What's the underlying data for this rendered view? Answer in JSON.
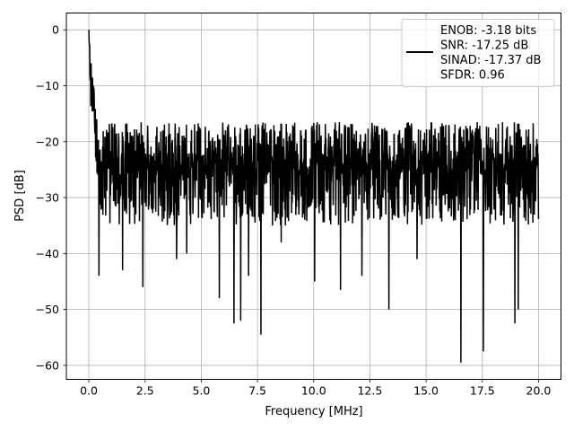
{
  "chart_data": {
    "type": "line",
    "xlabel": "Frequency [MHz]",
    "ylabel": "PSD [dB]",
    "xlim": [
      -1,
      21
    ],
    "ylim": [
      -62.5,
      3
    ],
    "x_ticks": [
      0,
      2.5,
      5,
      7.5,
      10,
      12.5,
      15,
      17.5,
      20
    ],
    "x_tick_labels": [
      "0.0",
      "2.5",
      "5.0",
      "7.5",
      "10.0",
      "12.5",
      "15.0",
      "17.5",
      "20.0"
    ],
    "y_ticks": [
      0,
      -10,
      -20,
      -30,
      -40,
      -50,
      -60
    ],
    "y_tick_labels": [
      "0",
      "−10",
      "−20",
      "−30",
      "−40",
      "−50",
      "−60"
    ],
    "grid": true,
    "legend_position": "top-right",
    "legend_entries": [
      "ENOB: -3.18 bits",
      "SNR: -17.25 dB",
      "SINAD: -17.37 dB",
      "SFDR: 0.96"
    ],
    "series_color": "#000000",
    "series": [
      {
        "x_start": 0,
        "x_end": 20,
        "points": 1600,
        "baseline_db": -22,
        "approx_min_db": -59.5,
        "approx_max_db": 0,
        "peaks": [
          [
            0.0,
            0
          ],
          [
            0.1,
            -6
          ],
          [
            0.2,
            -10
          ],
          [
            0.35,
            -16
          ]
        ],
        "deep_notches": [
          [
            0.45,
            -44
          ],
          [
            1.5,
            -43
          ],
          [
            2.4,
            -46
          ],
          [
            3.9,
            -41
          ],
          [
            4.35,
            -40
          ],
          [
            5.8,
            -48
          ],
          [
            6.45,
            -52.5
          ],
          [
            6.75,
            -52
          ],
          [
            7.1,
            -44
          ],
          [
            7.65,
            -54.5
          ],
          [
            8.55,
            -38
          ],
          [
            10.05,
            -45
          ],
          [
            11.2,
            -46.5
          ],
          [
            12.15,
            -44
          ],
          [
            13.35,
            -50
          ],
          [
            14.6,
            -41
          ],
          [
            16.55,
            -59.5
          ],
          [
            17.55,
            -57.5
          ],
          [
            18.95,
            -52.5
          ],
          [
            19.1,
            -50
          ]
        ]
      }
    ]
  }
}
